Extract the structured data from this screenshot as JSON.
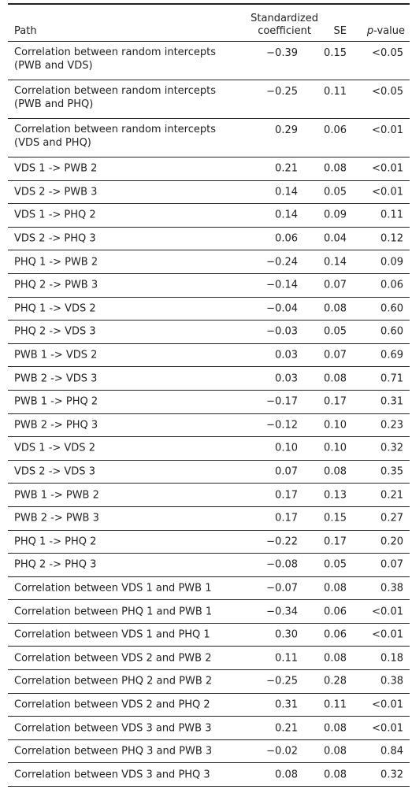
{
  "header": {
    "path": "Path",
    "coef_line1": "Standardized",
    "coef_line2": "coefficient",
    "se": "SE",
    "p_italic": "p",
    "p_suffix": "-value"
  },
  "rows": [
    {
      "path": "Correlation between random intercepts (PWB and VDS)",
      "coef": "−0.39",
      "se": "0.15",
      "p": "<0.05"
    },
    {
      "path": "Correlation between random intercepts (PWB and PHQ)",
      "coef": "−0.25",
      "se": "0.11",
      "p": "<0.05"
    },
    {
      "path": "Correlation between random intercepts (VDS and PHQ)",
      "coef": "0.29",
      "se": "0.06",
      "p": "<0.01"
    },
    {
      "path": "VDS 1 -> PWB 2",
      "coef": "0.21",
      "se": "0.08",
      "p": "<0.01"
    },
    {
      "path": "VDS 2 -> PWB 3",
      "coef": "0.14",
      "se": "0.05",
      "p": "<0.01"
    },
    {
      "path": "VDS 1 -> PHQ 2",
      "coef": "0.14",
      "se": "0.09",
      "p": "0.11"
    },
    {
      "path": "VDS 2 -> PHQ 3",
      "coef": "0.06",
      "se": "0.04",
      "p": "0.12"
    },
    {
      "path": "PHQ 1 -> PWB 2",
      "coef": "−0.24",
      "se": "0.14",
      "p": "0.09"
    },
    {
      "path": "PHQ 2 -> PWB 3",
      "coef": "−0.14",
      "se": "0.07",
      "p": "0.06"
    },
    {
      "path": "PHQ 1 -> VDS 2",
      "coef": "−0.04",
      "se": "0.08",
      "p": "0.60"
    },
    {
      "path": "PHQ 2 -> VDS 3",
      "coef": "−0.03",
      "se": "0.05",
      "p": "0.60"
    },
    {
      "path": "PWB 1 -> VDS 2",
      "coef": "0.03",
      "se": "0.07",
      "p": "0.69"
    },
    {
      "path": "PWB 2 -> VDS 3",
      "coef": "0.03",
      "se": "0.08",
      "p": "0.71"
    },
    {
      "path": "PWB 1 -> PHQ 2",
      "coef": "−0.17",
      "se": "0.17",
      "p": "0.31"
    },
    {
      "path": "PWB 2 -> PHQ 3",
      "coef": "−0.12",
      "se": "0.10",
      "p": "0.23"
    },
    {
      "path": "VDS 1 -> VDS 2",
      "coef": "0.10",
      "se": "0.10",
      "p": "0.32"
    },
    {
      "path": "VDS 2 -> VDS 3",
      "coef": "0.07",
      "se": "0.08",
      "p": "0.35"
    },
    {
      "path": "PWB 1 -> PWB 2",
      "coef": "0.17",
      "se": "0.13",
      "p": "0.21"
    },
    {
      "path": "PWB 2 -> PWB 3",
      "coef": "0.17",
      "se": "0.15",
      "p": "0.27"
    },
    {
      "path": "PHQ 1 -> PHQ 2",
      "coef": "−0.22",
      "se": "0.17",
      "p": "0.20"
    },
    {
      "path": "PHQ 2 -> PHQ 3",
      "coef": "−0.08",
      "se": "0.05",
      "p": "0.07"
    },
    {
      "path": "Correlation between VDS 1 and PWB 1",
      "coef": "−0.07",
      "se": "0.08",
      "p": "0.38"
    },
    {
      "path": "Correlation between PHQ 1 and PWB 1",
      "coef": "−0.34",
      "se": "0.06",
      "p": "<0.01"
    },
    {
      "path": "Correlation between VDS 1 and PHQ 1",
      "coef": "0.30",
      "se": "0.06",
      "p": "<0.01"
    },
    {
      "path": "Correlation between VDS 2 and PWB 2",
      "coef": "0.11",
      "se": "0.08",
      "p": "0.18"
    },
    {
      "path": "Correlation between PHQ 2 and PWB 2",
      "coef": "−0.25",
      "se": "0.28",
      "p": "0.38"
    },
    {
      "path": "Correlation between VDS 2 and PHQ 2",
      "coef": "0.31",
      "se": "0.11",
      "p": "<0.01"
    },
    {
      "path": "Correlation between VDS 3 and PWB 3",
      "coef": "0.21",
      "se": "0.08",
      "p": "<0.01"
    },
    {
      "path": "Correlation between PHQ 3 and PWB 3",
      "coef": "−0.02",
      "se": "0.08",
      "p": "0.84"
    },
    {
      "path": "Correlation between VDS 3 and PHQ 3",
      "coef": "0.08",
      "se": "0.08",
      "p": "0.32"
    }
  ]
}
